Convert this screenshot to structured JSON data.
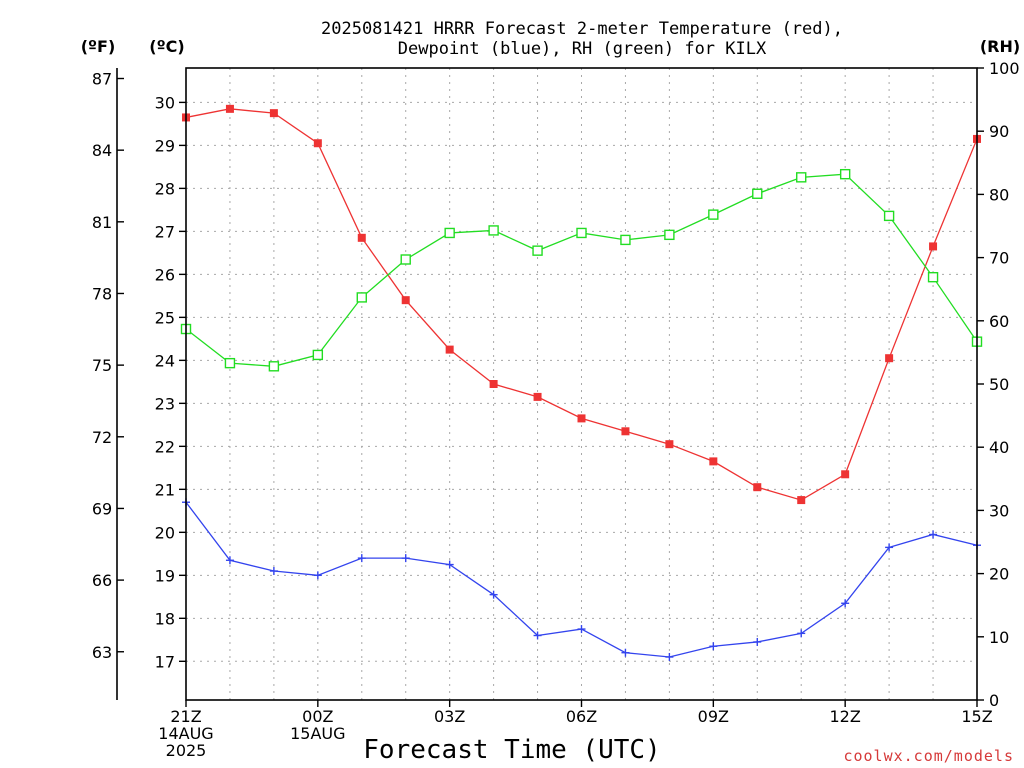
{
  "chart_data": {
    "type": "line",
    "title": "2025081421 HRRR Forecast 2-meter Temperature (red),",
    "subtitle": "Dewpoint (blue), RH (green) for KILX",
    "xlabel": "Forecast Time (UTC)",
    "x_hours": [
      0,
      1,
      2,
      3,
      4,
      5,
      6,
      7,
      8,
      9,
      10,
      11,
      12,
      13,
      14,
      15,
      16,
      17,
      18
    ],
    "x_tick_labels": [
      {
        "hour": 0,
        "line1": "21Z",
        "line2": "14AUG",
        "line3": "2025"
      },
      {
        "hour": 3,
        "line1": "00Z",
        "line2": "15AUG",
        "line3": ""
      },
      {
        "hour": 6,
        "line1": "03Z",
        "line2": "",
        "line3": ""
      },
      {
        "hour": 9,
        "line1": "06Z",
        "line2": "",
        "line3": ""
      },
      {
        "hour": 12,
        "line1": "09Z",
        "line2": "",
        "line3": ""
      },
      {
        "hour": 15,
        "line1": "12Z",
        "line2": "",
        "line3": ""
      },
      {
        "hour": 18,
        "line1": "15Z",
        "line2": "",
        "line3": ""
      }
    ],
    "xlim": [
      0,
      18
    ],
    "y_celsius": {
      "unit_label": "(ºC)",
      "ylim": [
        16.1,
        30.8
      ],
      "ticks": [
        17,
        18,
        19,
        20,
        21,
        22,
        23,
        24,
        25,
        26,
        27,
        28,
        29,
        30
      ]
    },
    "y_fahrenheit": {
      "unit_label": "(ºF)",
      "ticks": [
        63,
        66,
        69,
        72,
        75,
        78,
        81,
        84,
        87
      ]
    },
    "y_rh": {
      "unit_label": "(RH)",
      "ylim": [
        0,
        100
      ],
      "ticks": [
        0,
        10,
        20,
        30,
        40,
        50,
        60,
        70,
        80,
        90,
        100
      ]
    },
    "series": [
      {
        "name": "Temperature",
        "color": "#ee3333",
        "axis": "celsius",
        "marker": "filled-square",
        "values": [
          29.65,
          29.85,
          29.75,
          29.05,
          26.85,
          25.4,
          24.25,
          23.45,
          23.15,
          22.65,
          22.35,
          22.05,
          21.65,
          21.05,
          20.75,
          21.35,
          24.05,
          26.65,
          29.15
        ]
      },
      {
        "name": "Dewpoint",
        "color": "#3344ee",
        "axis": "celsius",
        "marker": "plus",
        "values": [
          20.7,
          19.35,
          19.1,
          19.0,
          19.4,
          19.4,
          19.25,
          18.55,
          17.6,
          17.75,
          17.2,
          17.1,
          17.35,
          17.45,
          17.65,
          18.35,
          19.65,
          19.95,
          19.7
        ]
      },
      {
        "name": "RH",
        "color": "#22dd22",
        "axis": "rh",
        "marker": "open-square",
        "values": [
          58.7,
          53.3,
          52.8,
          54.6,
          63.7,
          69.7,
          73.9,
          74.3,
          71.1,
          73.9,
          72.8,
          73.6,
          76.8,
          80.1,
          82.7,
          83.2,
          76.6,
          66.9,
          56.7
        ]
      }
    ],
    "grid": true
  },
  "credit": "coolwx.com/models"
}
